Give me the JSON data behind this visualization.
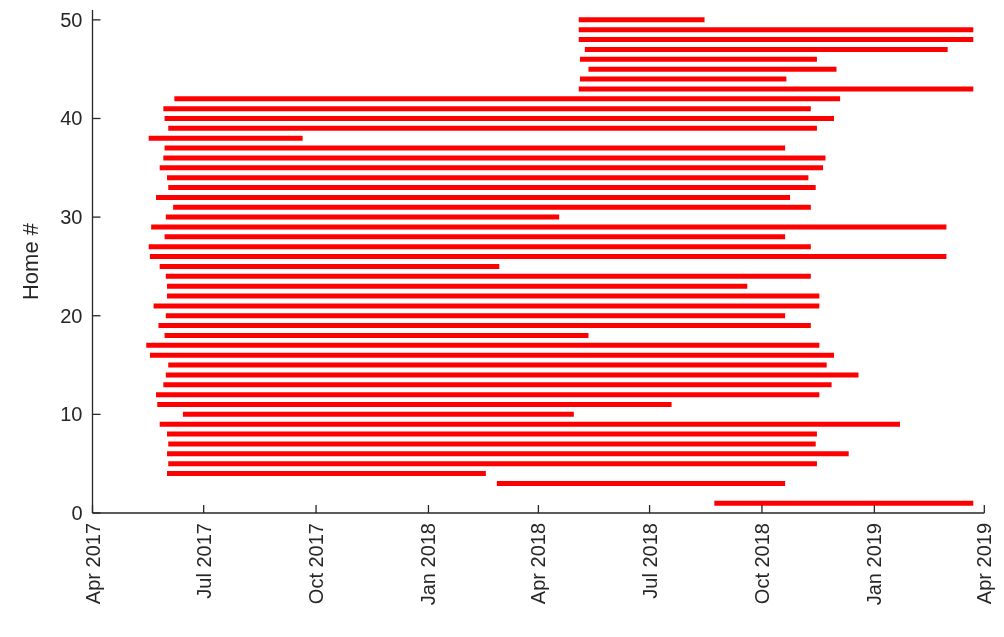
{
  "chart_data": {
    "type": "line",
    "ylabel": "Home #",
    "line_style": "solid",
    "xlim": [
      "2017-04",
      "2019-04"
    ],
    "xticks": [
      {
        "value": "2017-04",
        "label": "Apr 2017"
      },
      {
        "value": "2017-07",
        "label": "Jul 2017"
      },
      {
        "value": "2017-10",
        "label": "Oct 2017"
      },
      {
        "value": "2018-01",
        "label": "Jan 2018"
      },
      {
        "value": "2018-04",
        "label": "Apr 2018"
      },
      {
        "value": "2018-07",
        "label": "Jul 2018"
      },
      {
        "value": "2018-10",
        "label": "Oct 2018"
      },
      {
        "value": "2019-01",
        "label": "Jan 2019"
      },
      {
        "value": "2019-04",
        "label": "Apr 2019"
      }
    ],
    "ylim": [
      0,
      51
    ],
    "yticks": [
      0,
      10,
      20,
      30,
      40,
      50
    ],
    "series": [
      {
        "color": "#ff0000",
        "x": [
          "2018-08-23",
          "2019-03-23"
        ],
        "values": [
          1,
          1
        ]
      },
      {
        "color": "#ff0000",
        "x": [
          "2018-02-26",
          "2018-10-20"
        ],
        "values": [
          3,
          3
        ]
      },
      {
        "color": "#ff0000",
        "x": [
          "2017-06-01",
          "2018-02-17"
        ],
        "values": [
          4,
          4
        ]
      },
      {
        "color": "#ff0000",
        "x": [
          "2017-06-02",
          "2018-11-15"
        ],
        "values": [
          5,
          5
        ]
      },
      {
        "color": "#ff0000",
        "x": [
          "2017-06-01",
          "2018-12-11"
        ],
        "values": [
          6,
          6
        ]
      },
      {
        "color": "#ff0000",
        "x": [
          "2017-06-02",
          "2018-11-14"
        ],
        "values": [
          7,
          7
        ]
      },
      {
        "color": "#ff0000",
        "x": [
          "2017-06-01",
          "2018-11-15"
        ],
        "values": [
          8,
          8
        ]
      },
      {
        "color": "#ff0000",
        "x": [
          "2017-05-26",
          "2019-01-22"
        ],
        "values": [
          9,
          9
        ]
      },
      {
        "color": "#ff0000",
        "x": [
          "2017-06-14",
          "2018-04-30"
        ],
        "values": [
          10,
          10
        ]
      },
      {
        "color": "#ff0000",
        "x": [
          "2017-05-24",
          "2018-07-19"
        ],
        "values": [
          11,
          11
        ]
      },
      {
        "color": "#ff0000",
        "x": [
          "2017-05-23",
          "2018-11-17"
        ],
        "values": [
          12,
          12
        ]
      },
      {
        "color": "#ff0000",
        "x": [
          "2017-05-29",
          "2018-11-27"
        ],
        "values": [
          13,
          13
        ]
      },
      {
        "color": "#ff0000",
        "x": [
          "2017-05-31",
          "2018-12-19"
        ],
        "values": [
          14,
          14
        ]
      },
      {
        "color": "#ff0000",
        "x": [
          "2017-06-02",
          "2018-11-23"
        ],
        "values": [
          15,
          15
        ]
      },
      {
        "color": "#ff0000",
        "x": [
          "2017-05-18",
          "2018-11-29"
        ],
        "values": [
          16,
          16
        ]
      },
      {
        "color": "#ff0000",
        "x": [
          "2017-05-15",
          "2018-11-17"
        ],
        "values": [
          17,
          17
        ]
      },
      {
        "color": "#ff0000",
        "x": [
          "2017-05-30",
          "2018-05-12"
        ],
        "values": [
          18,
          18
        ]
      },
      {
        "color": "#ff0000",
        "x": [
          "2017-05-25",
          "2018-11-10"
        ],
        "values": [
          19,
          19
        ]
      },
      {
        "color": "#ff0000",
        "x": [
          "2017-05-31",
          "2018-10-20"
        ],
        "values": [
          20,
          20
        ]
      },
      {
        "color": "#ff0000",
        "x": [
          "2017-05-21",
          "2018-11-17"
        ],
        "values": [
          21,
          21
        ]
      },
      {
        "color": "#ff0000",
        "x": [
          "2017-06-01",
          "2018-11-17"
        ],
        "values": [
          22,
          22
        ]
      },
      {
        "color": "#ff0000",
        "x": [
          "2017-06-01",
          "2018-09-19"
        ],
        "values": [
          23,
          23
        ]
      },
      {
        "color": "#ff0000",
        "x": [
          "2017-05-31",
          "2018-11-10"
        ],
        "values": [
          24,
          24
        ]
      },
      {
        "color": "#ff0000",
        "x": [
          "2017-05-26",
          "2018-02-28"
        ],
        "values": [
          25,
          25
        ]
      },
      {
        "color": "#ff0000",
        "x": [
          "2017-05-18",
          "2019-03-01"
        ],
        "values": [
          26,
          26
        ]
      },
      {
        "color": "#ff0000",
        "x": [
          "2017-05-17",
          "2018-11-10"
        ],
        "values": [
          27,
          27
        ]
      },
      {
        "color": "#ff0000",
        "x": [
          "2017-05-30",
          "2018-10-20"
        ],
        "values": [
          28,
          28
        ]
      },
      {
        "color": "#ff0000",
        "x": [
          "2017-05-19",
          "2019-03-01"
        ],
        "values": [
          29,
          29
        ]
      },
      {
        "color": "#ff0000",
        "x": [
          "2017-05-31",
          "2018-04-18"
        ],
        "values": [
          30,
          30
        ]
      },
      {
        "color": "#ff0000",
        "x": [
          "2017-06-06",
          "2018-11-10"
        ],
        "values": [
          31,
          31
        ]
      },
      {
        "color": "#ff0000",
        "x": [
          "2017-05-23",
          "2018-10-24"
        ],
        "values": [
          32,
          32
        ]
      },
      {
        "color": "#ff0000",
        "x": [
          "2017-06-02",
          "2018-11-14"
        ],
        "values": [
          33,
          33
        ]
      },
      {
        "color": "#ff0000",
        "x": [
          "2017-06-01",
          "2018-11-08"
        ],
        "values": [
          34,
          34
        ]
      },
      {
        "color": "#ff0000",
        "x": [
          "2017-05-26",
          "2018-11-20"
        ],
        "values": [
          35,
          35
        ]
      },
      {
        "color": "#ff0000",
        "x": [
          "2017-05-29",
          "2018-11-22"
        ],
        "values": [
          36,
          36
        ]
      },
      {
        "color": "#ff0000",
        "x": [
          "2017-05-30",
          "2018-10-20"
        ],
        "values": [
          37,
          37
        ]
      },
      {
        "color": "#ff0000",
        "x": [
          "2017-05-17",
          "2017-09-20"
        ],
        "values": [
          38,
          38
        ]
      },
      {
        "color": "#ff0000",
        "x": [
          "2017-06-02",
          "2018-11-15"
        ],
        "values": [
          39,
          39
        ]
      },
      {
        "color": "#ff0000",
        "x": [
          "2017-05-30",
          "2018-11-29"
        ],
        "values": [
          40,
          40
        ]
      },
      {
        "color": "#ff0000",
        "x": [
          "2017-05-29",
          "2018-11-10"
        ],
        "values": [
          41,
          41
        ]
      },
      {
        "color": "#ff0000",
        "x": [
          "2017-06-07",
          "2018-12-04"
        ],
        "values": [
          42,
          42
        ]
      },
      {
        "color": "#ff0000",
        "x": [
          "2018-05-04",
          "2019-03-23"
        ],
        "values": [
          43,
          43
        ]
      },
      {
        "color": "#ff0000",
        "x": [
          "2018-05-05",
          "2018-10-21"
        ],
        "values": [
          44,
          44
        ]
      },
      {
        "color": "#ff0000",
        "x": [
          "2018-05-12",
          "2018-12-01"
        ],
        "values": [
          45,
          45
        ]
      },
      {
        "color": "#ff0000",
        "x": [
          "2018-05-05",
          "2018-11-15"
        ],
        "values": [
          46,
          46
        ]
      },
      {
        "color": "#ff0000",
        "x": [
          "2018-05-09",
          "2019-03-02"
        ],
        "values": [
          47,
          47
        ]
      },
      {
        "color": "#ff0000",
        "x": [
          "2018-05-04",
          "2019-03-23"
        ],
        "values": [
          48,
          48
        ]
      },
      {
        "color": "#ff0000",
        "x": [
          "2018-05-04",
          "2019-03-23"
        ],
        "values": [
          49,
          49
        ]
      },
      {
        "color": "#ff0000",
        "x": [
          "2018-05-04",
          "2018-08-15"
        ],
        "values": [
          50,
          50
        ]
      }
    ]
  }
}
